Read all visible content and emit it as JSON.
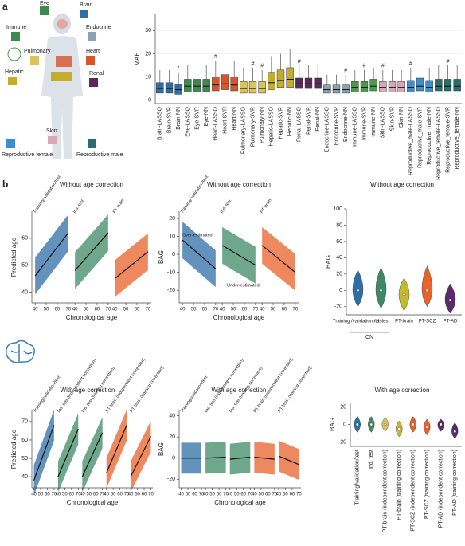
{
  "panel_labels": [
    "a",
    "b"
  ],
  "organs": [
    "Immune",
    "Eye",
    "Brain",
    "Endocrine",
    "Pulmonary",
    "Heart",
    "Hepatic",
    "Renal",
    "Skin",
    "Reproductive female",
    "Reproductive male"
  ],
  "chart_data": [
    {
      "type": "box",
      "ylabel": "MAE",
      "categories": [
        "Brain-LASSO",
        "Brain-SVR",
        "Brain-NN",
        "Eye-LASSO",
        "Eye-SVR",
        "Eye-NN",
        "Heart-LASSO",
        "Heart-SVR",
        "Heart-NN",
        "Pulmonary-LASSO",
        "Pulmonary-SVR",
        "Pulmonary-NN",
        "Hepatic-LASSO",
        "Hepatic-SVR",
        "Hepatic-NN",
        "Renal-LASSO",
        "Renal-SVR",
        "Renal-NN",
        "Endocrine-LASSO",
        "Endocrine-SVR",
        "Endocrine-NN",
        "Immune-LASSO",
        "Immune-SVR",
        "Immune-NN",
        "Skin-LASSO",
        "Skin-SVR",
        "Skin-NN",
        "Reproductive_male-LASSO",
        "Reproductive_male-SVR",
        "Reproductive_male-NN",
        "Reproductive_female-LASSO",
        "Reproductive_female-SVR",
        "Reproductive_female-NN"
      ],
      "colors": [
        "#2f6ea5",
        "#2f6ea5",
        "#2f6ea5",
        "#3e8a4e",
        "#3e8a4e",
        "#3e8a4e",
        "#d9542a",
        "#d9542a",
        "#d9542a",
        "#d9c35a",
        "#d9c35a",
        "#d9c35a",
        "#c4ad2c",
        "#c4ad2c",
        "#c4ad2c",
        "#5b2a5b",
        "#5b2a5b",
        "#5b2a5b",
        "#8aa3b3",
        "#8aa3b3",
        "#8aa3b3",
        "#4a9a4a",
        "#4a9a4a",
        "#4a9a4a",
        "#d8a6b5",
        "#d8a6b5",
        "#d8a6b5",
        "#3b8ed0",
        "#3b8ed0",
        "#3b8ed0",
        "#2a6e6e",
        "#2a6e6e",
        "#2a6e6e"
      ],
      "q1": [
        3,
        3,
        2.5,
        3.5,
        3.5,
        3.5,
        4,
        4.5,
        4,
        3,
        3,
        3,
        4.5,
        5.5,
        5.5,
        5,
        5,
        5,
        3,
        3,
        3,
        3.5,
        3.5,
        4,
        3.5,
        3.5,
        3.5,
        3.5,
        4,
        3.5,
        4,
        4,
        4
      ],
      "values": [
        5,
        5,
        4.5,
        6,
        6,
        6,
        6.5,
        7,
        6.5,
        5,
        5,
        5,
        7.5,
        8.5,
        9,
        7,
        7,
        7,
        4.5,
        4.5,
        4.5,
        5.5,
        5.5,
        6,
        5.5,
        5.5,
        5.5,
        5.5,
        6,
        5.5,
        6,
        6,
        6
      ],
      "q3": [
        7.5,
        7.5,
        7,
        9,
        9,
        9,
        10,
        11,
        10,
        8,
        8,
        8,
        12,
        13,
        14,
        9.5,
        9.5,
        9.5,
        6.5,
        6.5,
        6.5,
        8,
        8,
        9,
        8,
        8,
        8,
        8.5,
        9.5,
        8.5,
        9,
        9,
        9
      ],
      "whisker_high": [
        13,
        13,
        12,
        15,
        15,
        15,
        17,
        18,
        17,
        14,
        14,
        13,
        19,
        20,
        22,
        15,
        15,
        15,
        11,
        11,
        11,
        13,
        13,
        14,
        13,
        13,
        13,
        14,
        15,
        14,
        15,
        15,
        15
      ],
      "markers": [
        null,
        null,
        "*",
        null,
        null,
        null,
        "#",
        null,
        null,
        null,
        "#",
        "#",
        null,
        null,
        null,
        "#",
        null,
        null,
        null,
        null,
        "#",
        null,
        "#",
        null,
        "#",
        null,
        null,
        "#",
        null,
        null,
        null,
        "#",
        null
      ],
      "ylim": [
        -1.5,
        37
      ],
      "yticks": [
        0,
        10,
        20,
        30
      ]
    },
    {
      "type": "scatter-panels",
      "title": "Without age correction",
      "xlabel": "Chronological age",
      "ylabel": "Predicted age",
      "xlim": [
        37,
        73
      ],
      "xticks": [
        40,
        50,
        60,
        70
      ],
      "ylim": [
        36,
        70
      ],
      "yticks": [
        40,
        50,
        60
      ],
      "fit_x": [
        40,
        70
      ],
      "panels": [
        {
          "name": "Training/ validation/test",
          "color": "#2f6ea5",
          "fit": [
            46,
            62
          ]
        },
        {
          "name": "Ind. test",
          "color": "#3e8a66",
          "fit": [
            48,
            62
          ]
        },
        {
          "name": "PT brain",
          "color": "#e8622a",
          "fit": [
            45,
            55
          ]
        }
      ]
    },
    {
      "type": "scatter-panels",
      "title": "Without age correction",
      "xlabel": "Chronological age",
      "ylabel": "BAG",
      "xlim": [
        37,
        73
      ],
      "xticks": [
        40,
        50,
        60,
        70
      ],
      "ylim": [
        -27,
        24
      ],
      "yticks": [
        -20,
        -10,
        0,
        10,
        20
      ],
      "fit_x": [
        40,
        70
      ],
      "annotations": [
        "Over-estimated",
        "Under-estimated"
      ],
      "panels": [
        {
          "name": "Training/ validation/test",
          "color": "#2f6ea5",
          "fit": [
            8,
            -8
          ]
        },
        {
          "name": "Ind. test",
          "color": "#3e8a66",
          "fit": [
            5,
            -6
          ]
        },
        {
          "name": "PT brain",
          "color": "#e8622a",
          "fit": [
            5,
            -10
          ]
        }
      ]
    },
    {
      "type": "violin",
      "title": "Without age correction",
      "ylabel": "BAG",
      "group": "CN",
      "categories": [
        "Training /validation /test",
        "Ind. test",
        "PT-brain",
        "PT-SCZ",
        "PT-AD"
      ],
      "colors": [
        "#2f6ea5",
        "#3e8a66",
        "#c4b82c",
        "#e8622a",
        "#5b2a6b"
      ],
      "low": [
        -20,
        -22,
        -25,
        -20,
        -28
      ],
      "values": [
        0,
        0,
        -5,
        0,
        -12
      ],
      "high": [
        25,
        28,
        15,
        30,
        8
      ],
      "ylim": [
        -30,
        100
      ],
      "yticks": [
        -20,
        0,
        20,
        40,
        60,
        80,
        100
      ]
    },
    {
      "type": "scatter-panels",
      "title": "With age correction",
      "xlabel": "Chronological age",
      "ylabel": "Predicted age",
      "xlim": [
        37,
        73
      ],
      "xticks": [
        40,
        50,
        60,
        70
      ],
      "ylim": [
        34,
        76
      ],
      "yticks": [
        40,
        50,
        60,
        70
      ],
      "fit_x": [
        40,
        70
      ],
      "panels": [
        {
          "name": "Training/validation/test",
          "color": "#2f6ea5",
          "fit": [
            38,
            68
          ]
        },
        {
          "name": "Ind. test (independent correction)",
          "color": "#3e8a66",
          "fit": [
            40,
            66
          ]
        },
        {
          "name": "Ind. test (training correction)",
          "color": "#3e8a66",
          "fit": [
            40,
            64
          ]
        },
        {
          "name": "PT brain (independent correction)",
          "color": "#e8622a",
          "fit": [
            42,
            68
          ]
        },
        {
          "name": "PT brain (training correction)",
          "color": "#e8622a",
          "fit": [
            40,
            62
          ]
        }
      ]
    },
    {
      "type": "scatter-panels",
      "title": "With age correction",
      "xlabel": "Chronological age",
      "ylabel": "BAG",
      "xlim": [
        37,
        73
      ],
      "xticks": [
        40,
        50,
        60,
        70
      ],
      "ylim": [
        -28,
        45
      ],
      "yticks": [
        -20,
        0,
        20,
        40
      ],
      "fit_x": [
        40,
        70
      ],
      "panels": [
        {
          "name": "Training/validation/test",
          "color": "#2f6ea5",
          "fit": [
            0,
            0
          ]
        },
        {
          "name": "Ind. test (independent correction)",
          "color": "#3e8a66",
          "fit": [
            0,
            1
          ]
        },
        {
          "name": "Ind. test (training correction)",
          "color": "#3e8a66",
          "fit": [
            -1,
            1
          ]
        },
        {
          "name": "PT brain (independent correction)",
          "color": "#e8622a",
          "fit": [
            1,
            -1
          ]
        },
        {
          "name": "PT brain (training correction)",
          "color": "#e8622a",
          "fit": [
            2,
            -6
          ]
        }
      ]
    },
    {
      "type": "violin",
      "title": "With age correction",
      "ylabel": "BAG",
      "categories": [
        "Training/validation/test",
        "Ind. test",
        "PT-brain (independent correction)",
        "PT-brain (training correction)",
        "PT-SCZ (independent correction)",
        "PT-SCZ (training correction)",
        "PT-AD (independent correction)",
        "PT-AD (training correction)"
      ],
      "colors": [
        "#2f6ea5",
        "#3e8a66",
        "#d9c35a",
        "#c4b82c",
        "#e8622a",
        "#e8622a",
        "#5b2a6b",
        "#5b2a6b"
      ],
      "low": [
        -9,
        -9,
        -8,
        -14,
        -9,
        -12,
        -8,
        -16
      ],
      "values": [
        0,
        0,
        0,
        -5,
        0,
        -3,
        0,
        -8
      ],
      "high": [
        9,
        9,
        8,
        4,
        9,
        6,
        6,
        2
      ],
      "ylim": [
        -25,
        25
      ],
      "yticks": [
        -20,
        0,
        20
      ]
    }
  ]
}
